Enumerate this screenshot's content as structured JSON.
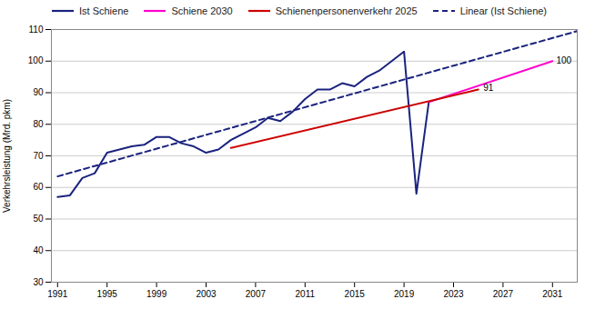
{
  "chart_data": {
    "type": "line",
    "y_label": "Verkehrsleistung (Mrd. pkm)",
    "xlim": [
      1990.5,
      2033
    ],
    "xticks": [
      1991,
      1995,
      1999,
      2003,
      2007,
      2011,
      2015,
      2019,
      2023,
      2027,
      2031
    ],
    "ylim": [
      30,
      110
    ],
    "yticks": [
      30,
      40,
      50,
      60,
      70,
      80,
      90,
      100,
      110
    ],
    "grid": "y",
    "legend": "upper left",
    "series": [
      {
        "name": "Ist Schiene",
        "color": "#1a237e",
        "line_style": "solid",
        "x": [
          1991,
          1992,
          1993,
          1994,
          1995,
          1996,
          1997,
          1998,
          1999,
          2000,
          2001,
          2002,
          2003,
          2004,
          2005,
          2006,
          2007,
          2008,
          2009,
          2010,
          2011,
          2012,
          2013,
          2014,
          2015,
          2016,
          2017,
          2018,
          2019,
          2020,
          2021
        ],
        "values": [
          57,
          57.5,
          63,
          64.5,
          71,
          72,
          73,
          73.5,
          76,
          76,
          74,
          73,
          71,
          72,
          75,
          77,
          79,
          82,
          81,
          84,
          88,
          91,
          91,
          93,
          92,
          95,
          97,
          100,
          103,
          58,
          87
        ]
      },
      {
        "name": "Schiene 2030",
        "color": "#ff00cc",
        "line_style": "solid",
        "x": [
          2021,
          2031
        ],
        "values": [
          87,
          100
        ]
      },
      {
        "name": "Schienenpersonenverkehr 2025",
        "color": "#cc0000",
        "line_style": "solid",
        "x": [
          2005,
          2025
        ],
        "values": [
          72.5,
          91
        ]
      },
      {
        "name": "Linear (Ist Schiene)",
        "color": "#1a237e",
        "line_style": "dashed",
        "x": [
          1991,
          2033
        ],
        "values": [
          63.5,
          109.5
        ]
      }
    ],
    "annotations": [
      {
        "text": "100",
        "x": 2031.3,
        "y": 100
      },
      {
        "text": "91",
        "x": 2025.4,
        "y": 91.5
      }
    ]
  }
}
